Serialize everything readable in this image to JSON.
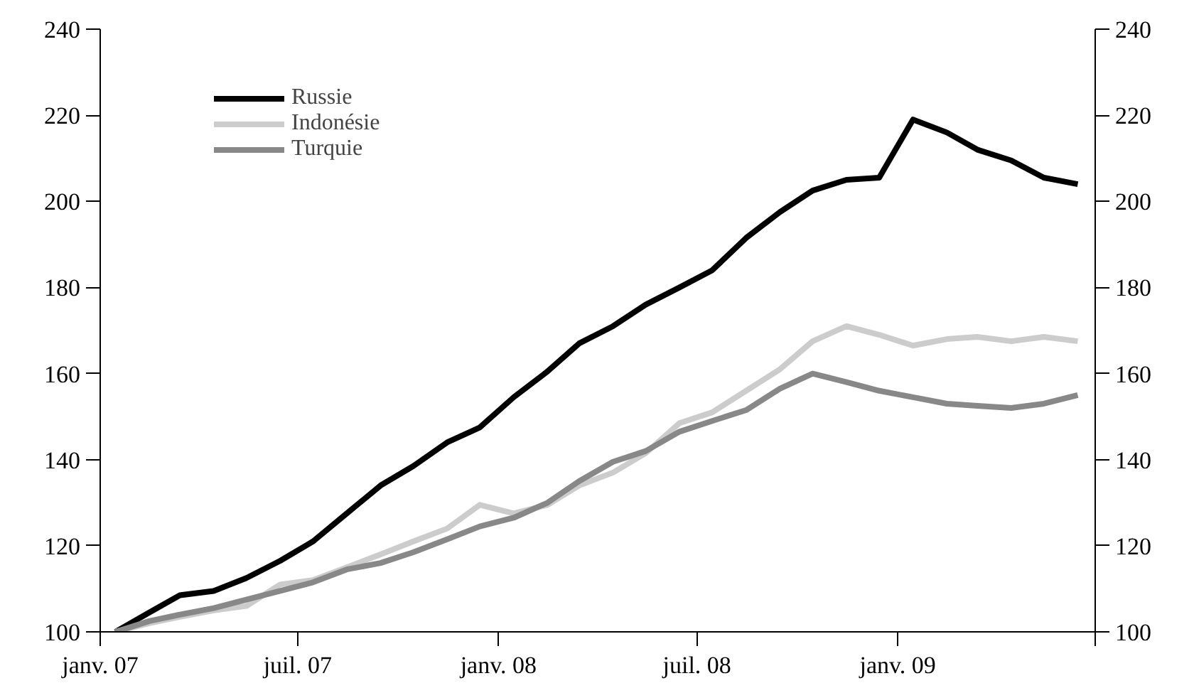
{
  "chart_data": {
    "type": "line",
    "x": [
      "2007-01-15",
      "2007-02-15",
      "2007-03-15",
      "2007-04-15",
      "2007-05-15",
      "2007-06-15",
      "2007-07-15",
      "2007-08-15",
      "2007-09-15",
      "2007-10-15",
      "2007-11-15",
      "2007-12-15",
      "2008-01-15",
      "2008-02-15",
      "2008-03-15",
      "2008-04-15",
      "2008-05-15",
      "2008-06-15",
      "2008-07-15",
      "2008-08-15",
      "2008-09-15",
      "2008-10-15",
      "2008-11-15",
      "2008-12-15",
      "2009-01-15",
      "2009-02-15",
      "2009-03-15",
      "2009-04-15",
      "2009-05-15",
      "2009-06-15"
    ],
    "series": [
      {
        "name": "Russie",
        "color": "#000000",
        "values": [
          100,
          104.5,
          108.5,
          109.5,
          112.5,
          116.5,
          121,
          127.5,
          134,
          138.5,
          144,
          147.5,
          154.5,
          160.5,
          167,
          171,
          176,
          180,
          184,
          191.5,
          197.5,
          202.5,
          205,
          205.5,
          219,
          216,
          212,
          209.5,
          205.5,
          204
        ]
      },
      {
        "name": "Indonésie",
        "color": "#cccccc",
        "values": [
          100,
          102,
          103.5,
          105,
          106,
          111,
          112,
          115,
          118,
          121,
          124,
          129.5,
          127.5,
          129.5,
          134,
          137,
          141.5,
          148.5,
          151,
          156,
          161,
          167.5,
          171,
          169,
          166.5,
          168,
          168.5,
          167.5,
          168.5,
          167.5
        ]
      },
      {
        "name": "Turquie",
        "color": "#888888",
        "values": [
          100,
          102.5,
          104,
          105.5,
          107.5,
          109.5,
          111.5,
          114.5,
          116,
          118.5,
          121.5,
          124.5,
          126.5,
          130,
          135,
          139.5,
          142,
          146.5,
          149,
          151.5,
          156.5,
          160,
          158,
          156,
          154.5,
          153,
          152.5,
          152,
          153,
          155
        ]
      }
    ],
    "xlim": [
      "2007-01-01",
      "2009-07-01"
    ],
    "xticks": [
      {
        "value": "2007-01-01",
        "label": "janv. 07"
      },
      {
        "value": "2007-07-01",
        "label": "juil. 07"
      },
      {
        "value": "2008-01-01",
        "label": "janv. 08"
      },
      {
        "value": "2008-07-01",
        "label": "juil. 08"
      },
      {
        "value": "2009-01-01",
        "label": "janv. 09"
      },
      {
        "value": "2009-07-01",
        "label": null
      }
    ],
    "ylim": [
      100,
      240
    ],
    "yticks": [
      100,
      120,
      140,
      160,
      180,
      200,
      220,
      240
    ],
    "y2lim": [
      100,
      240
    ],
    "y2ticks": [
      100,
      120,
      140,
      160,
      180,
      200,
      220,
      240
    ],
    "grid": false,
    "legend": "top left",
    "marker": "none",
    "line_style": "solid"
  }
}
